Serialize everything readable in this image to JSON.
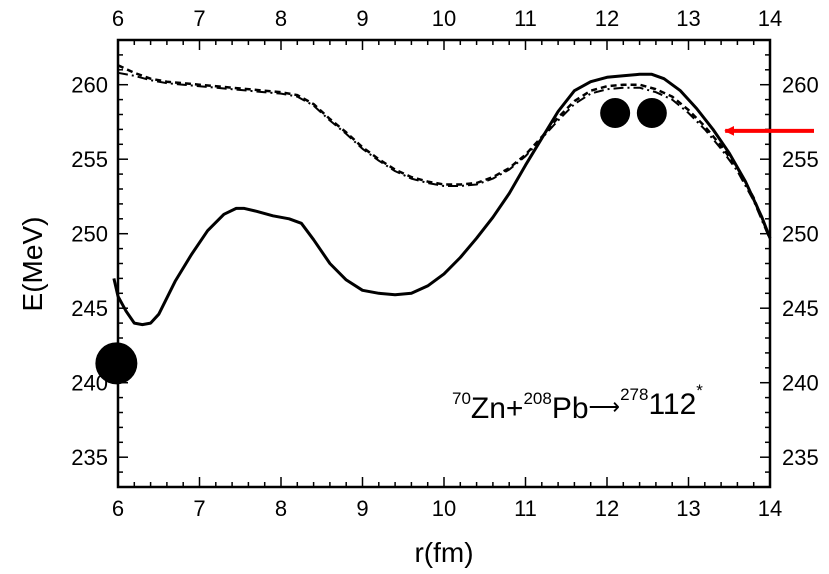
{
  "chart_data": {
    "type": "line",
    "title": "",
    "xlabel": "r(fm)",
    "ylabel": "E(MeV)",
    "xlim": [
      6,
      14
    ],
    "ylim": [
      233,
      263
    ],
    "x_ticks": [
      6,
      7,
      8,
      9,
      10,
      11,
      12,
      13,
      14
    ],
    "x_tick_labels": [
      "6",
      "7",
      "8",
      "9",
      "10",
      "11",
      "12",
      "13",
      "14"
    ],
    "y_ticks": [
      235,
      240,
      245,
      250,
      255,
      260
    ],
    "y_tick_labels": [
      "235",
      "240",
      "245",
      "250",
      "255",
      "260"
    ],
    "grid": false,
    "series": [
      {
        "style": "solid",
        "x": [
          5.95,
          6.0,
          6.1,
          6.2,
          6.3,
          6.4,
          6.5,
          6.7,
          6.9,
          7.1,
          7.3,
          7.45,
          7.55,
          7.7,
          7.9,
          8.1,
          8.25,
          8.4,
          8.6,
          8.8,
          9.0,
          9.2,
          9.4,
          9.6,
          9.8,
          10.0,
          10.2,
          10.4,
          10.6,
          10.8,
          11.0,
          11.2,
          11.4,
          11.6,
          11.8,
          12.0,
          12.2,
          12.4,
          12.55,
          12.7,
          12.9,
          13.1,
          13.3,
          13.5,
          13.7,
          13.9,
          14.0
        ],
        "y": [
          247.0,
          245.8,
          244.8,
          244.0,
          243.9,
          244.0,
          244.6,
          246.8,
          248.6,
          250.2,
          251.3,
          251.7,
          251.7,
          251.5,
          251.2,
          251.0,
          250.7,
          249.6,
          248.0,
          246.9,
          246.2,
          246.0,
          245.9,
          246.0,
          246.5,
          247.3,
          248.4,
          249.7,
          251.1,
          252.7,
          254.6,
          256.4,
          258.2,
          259.6,
          260.2,
          260.5,
          260.6,
          260.7,
          260.7,
          260.4,
          259.6,
          258.4,
          257.0,
          255.4,
          253.5,
          251.1,
          249.7
        ]
      },
      {
        "style": "dashed",
        "x": [
          6.0,
          6.2,
          6.4,
          6.6,
          6.8,
          7.0,
          7.4,
          7.8,
          8.0,
          8.2,
          8.4,
          8.6,
          8.8,
          9.0,
          9.2,
          9.4,
          9.6,
          9.8,
          10.0,
          10.2,
          10.4,
          10.6,
          10.8,
          11.0,
          11.2,
          11.4,
          11.6,
          11.8,
          12.0,
          12.2,
          12.4,
          12.6,
          12.8,
          13.0,
          13.2,
          13.4,
          13.6,
          13.8,
          14.0
        ],
        "y": [
          261.3,
          260.8,
          260.4,
          260.2,
          260.1,
          260.0,
          259.8,
          259.6,
          259.5,
          259.3,
          258.7,
          257.7,
          256.8,
          255.8,
          255.0,
          254.3,
          253.8,
          253.5,
          253.3,
          253.3,
          253.4,
          253.8,
          254.4,
          255.3,
          256.5,
          257.8,
          258.9,
          259.6,
          259.9,
          260.0,
          260.0,
          259.7,
          259.2,
          258.3,
          257.2,
          255.9,
          254.4,
          252.4,
          249.7
        ]
      },
      {
        "style": "dashdot",
        "x": [
          6.0,
          6.2,
          6.4,
          6.6,
          6.8,
          7.0,
          7.4,
          7.8,
          8.0,
          8.2,
          8.4,
          8.6,
          8.8,
          9.0,
          9.2,
          9.4,
          9.6,
          9.8,
          10.0,
          10.2,
          10.4,
          10.6,
          10.8,
          11.0,
          11.2,
          11.4,
          11.6,
          11.8,
          12.0,
          12.2,
          12.4,
          12.6,
          12.8,
          13.0,
          13.2,
          13.4,
          13.6,
          13.8,
          14.0
        ],
        "y": [
          260.8,
          260.6,
          260.3,
          260.1,
          260.0,
          259.9,
          259.7,
          259.5,
          259.4,
          259.2,
          258.6,
          257.6,
          256.7,
          255.7,
          254.9,
          254.2,
          253.7,
          253.4,
          253.2,
          253.2,
          253.3,
          253.7,
          254.3,
          255.2,
          256.4,
          257.6,
          258.7,
          259.4,
          259.7,
          259.8,
          259.8,
          259.5,
          259.0,
          258.1,
          257.0,
          255.7,
          254.2,
          252.2,
          249.6
        ]
      }
    ],
    "markers": [
      {
        "shape": "large-circle",
        "x": 5.98,
        "y": 241.3
      },
      {
        "shape": "small-circle",
        "x": 12.1,
        "y": 258.1
      },
      {
        "shape": "small-circle",
        "x": 12.55,
        "y": 258.1
      }
    ],
    "arrow": {
      "color": "#ff0000",
      "points_to": {
        "x": 13.45,
        "y": 256.9
      }
    },
    "annotation": {
      "parts": [
        {
          "sup": "70",
          "text": "Zn+"
        },
        {
          "sup": "208",
          "text": "Pb"
        },
        {
          "sup": "278",
          "text": "112"
        }
      ],
      "trailing_sup": "*"
    }
  }
}
